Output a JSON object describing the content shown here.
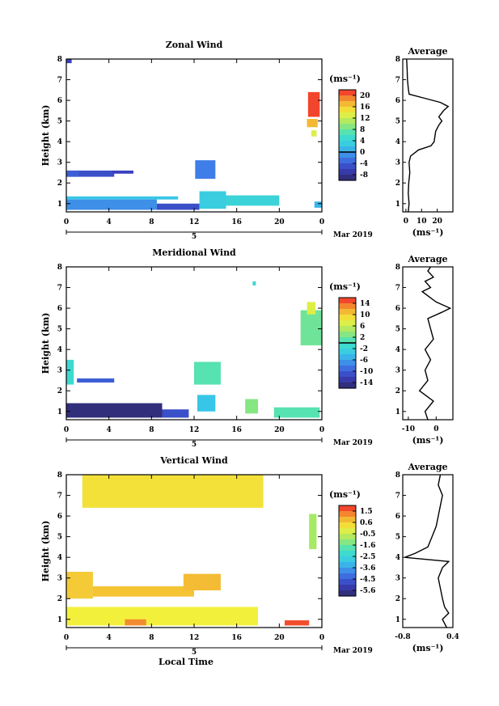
{
  "figure": {
    "date_label": "Mar 2019",
    "xlabel_bottom": "Local Time",
    "avg_title": "Average",
    "unit_label": "(ms⁻¹)"
  },
  "chart_data": [
    {
      "type": "heatmap",
      "title": "Zonal Wind",
      "xlabel": "",
      "ylabel": "Height (km)",
      "xlim": [
        0,
        24
      ],
      "ylim": [
        0.6,
        8
      ],
      "xticks": [
        "0",
        "4",
        "8",
        "12",
        "16",
        "20",
        "0"
      ],
      "yticks": [
        "1",
        "2",
        "3",
        "4",
        "5",
        "6",
        "7",
        "8"
      ],
      "day_label": "5",
      "colorbar": {
        "unit": "(ms⁻¹)",
        "range": [
          -10,
          22
        ],
        "ticks": [
          "20",
          "16",
          "12",
          "8",
          "4",
          "0",
          "-4",
          "-8"
        ],
        "zero_line": 0
      },
      "patches": [
        {
          "x": [
            0,
            0.5
          ],
          "y": [
            7.8,
            8.0
          ],
          "value": -6
        },
        {
          "x": [
            0.1,
            4.5
          ],
          "y": [
            2.3,
            2.6
          ],
          "value": -5
        },
        {
          "x": [
            0,
            1.2
          ],
          "y": [
            2.3,
            2.6
          ],
          "value": -4
        },
        {
          "x": [
            4.3,
            6.3
          ],
          "y": [
            2.45,
            2.6
          ],
          "value": -6
        },
        {
          "x": [
            12.1,
            14.0
          ],
          "y": [
            2.2,
            3.1
          ],
          "value": -2
        },
        {
          "x": [
            0,
            10.5
          ],
          "y": [
            1.2,
            1.35
          ],
          "value": 2
        },
        {
          "x": [
            0,
            8.5
          ],
          "y": [
            0.7,
            1.2
          ],
          "value": -1
        },
        {
          "x": [
            8.5,
            12.5
          ],
          "y": [
            0.7,
            1.0
          ],
          "value": -5
        },
        {
          "x": [
            12.5,
            15.0
          ],
          "y": [
            0.75,
            1.6
          ],
          "value": 3
        },
        {
          "x": [
            15.0,
            20.0
          ],
          "y": [
            0.9,
            1.4
          ],
          "value": 4
        },
        {
          "x": [
            22.7,
            23.8
          ],
          "y": [
            5.2,
            6.4
          ],
          "value": 21
        },
        {
          "x": [
            22.6,
            23.6
          ],
          "y": [
            4.7,
            5.1
          ],
          "value": 17
        },
        {
          "x": [
            23.0,
            23.5
          ],
          "y": [
            4.25,
            4.55
          ],
          "value": 13
        },
        {
          "x": [
            23.3,
            24.0
          ],
          "y": [
            0.8,
            1.1
          ],
          "value": 1
        }
      ],
      "average_profile": {
        "xlabel": "(ms⁻¹)",
        "xlim": [
          -2,
          30
        ],
        "xticks": [
          "0",
          "10",
          "20"
        ],
        "height": [
          0.6,
          1.0,
          1.5,
          2.0,
          2.5,
          3.0,
          3.3,
          3.6,
          3.8,
          4.0,
          4.5,
          4.8,
          5.0,
          5.2,
          5.5,
          5.7,
          5.9,
          6.1,
          6.3,
          6.6,
          7.0,
          7.5,
          8.0
        ],
        "value": [
          1.5,
          2.0,
          1.5,
          1.8,
          2.5,
          2.0,
          3.0,
          8.0,
          16.0,
          18.0,
          19.0,
          21.0,
          23.0,
          21.0,
          24.0,
          27.0,
          22.0,
          12.0,
          2.0,
          1.5,
          1.0,
          0.8,
          0.5
        ]
      }
    },
    {
      "type": "heatmap",
      "title": "Meridional Wind",
      "xlabel": "",
      "ylabel": "Height (km)",
      "xlim": [
        0,
        24
      ],
      "ylim": [
        0.6,
        8
      ],
      "xticks": [
        "0",
        "4",
        "8",
        "12",
        "16",
        "20",
        "0"
      ],
      "yticks": [
        "1",
        "2",
        "3",
        "4",
        "5",
        "6",
        "7",
        "8"
      ],
      "day_label": "5",
      "colorbar": {
        "unit": "(ms⁻¹)",
        "range": [
          -16,
          16
        ],
        "ticks": [
          "14",
          "10",
          "6",
          "2",
          "-2",
          "-6",
          "-10",
          "-14"
        ],
        "zero_line": 0
      },
      "patches": [
        {
          "x": [
            0,
            0.7
          ],
          "y": [
            2.3,
            3.5
          ],
          "value": -1
        },
        {
          "x": [
            1.0,
            4.5
          ],
          "y": [
            2.4,
            2.6
          ],
          "value": -10
        },
        {
          "x": [
            0,
            9.0
          ],
          "y": [
            0.7,
            1.4
          ],
          "value": -15
        },
        {
          "x": [
            9.0,
            11.5
          ],
          "y": [
            0.7,
            1.1
          ],
          "value": -11
        },
        {
          "x": [
            12.0,
            14.5
          ],
          "y": [
            2.3,
            3.4
          ],
          "value": 1
        },
        {
          "x": [
            12.3,
            14.0
          ],
          "y": [
            1.0,
            1.8
          ],
          "value": -4
        },
        {
          "x": [
            16.8,
            18.0
          ],
          "y": [
            0.9,
            1.6
          ],
          "value": 3
        },
        {
          "x": [
            19.5,
            23.8
          ],
          "y": [
            0.7,
            1.2
          ],
          "value": 1
        },
        {
          "x": [
            17.5,
            17.8
          ],
          "y": [
            7.1,
            7.3
          ],
          "value": -1
        },
        {
          "x": [
            22.0,
            24.0
          ],
          "y": [
            4.2,
            5.9
          ],
          "value": 2
        },
        {
          "x": [
            22.6,
            23.4
          ],
          "y": [
            5.7,
            6.3
          ],
          "value": 7
        }
      ],
      "average_profile": {
        "xlabel": "(ms⁻¹)",
        "xlim": [
          -12,
          6
        ],
        "xticks": [
          "-10",
          "0"
        ],
        "height": [
          0.6,
          1.0,
          1.5,
          2.0,
          2.5,
          3.0,
          3.5,
          4.0,
          4.5,
          5.0,
          5.5,
          5.8,
          6.0,
          6.3,
          6.5,
          6.8,
          7.0,
          7.3,
          7.5,
          7.8,
          8.0
        ],
        "value": [
          -3,
          -4,
          -1,
          -6,
          -3,
          -4,
          -2,
          -4,
          -1,
          -2,
          -3,
          2,
          5,
          0,
          -2,
          -5,
          -2,
          -4,
          -1,
          -3,
          -2
        ]
      }
    },
    {
      "type": "heatmap",
      "title": "Vertical Wind",
      "xlabel": "Local Time",
      "ylabel": "Height (km)",
      "xlim": [
        0,
        24
      ],
      "ylim": [
        0.6,
        8
      ],
      "xticks": [
        "0",
        "4",
        "8",
        "12",
        "16",
        "20",
        "0"
      ],
      "yticks": [
        "1",
        "2",
        "3",
        "4",
        "5",
        "6",
        "7",
        "8"
      ],
      "day_label": "5",
      "colorbar": {
        "unit": "(ms⁻¹)",
        "range": [
          -6.0,
          2.0
        ],
        "ticks": [
          "1.5",
          "0.6",
          "-0.5",
          "-1.6",
          "-2.5",
          "-3.6",
          "-4.5",
          "-5.6"
        ],
        "zero_line": null
      },
      "patches": [
        {
          "x": [
            1.5,
            18.5
          ],
          "y": [
            6.4,
            8.0
          ],
          "value": 0.2
        },
        {
          "x": [
            0,
            2.5
          ],
          "y": [
            2.0,
            3.3
          ],
          "value": 0.5
        },
        {
          "x": [
            2.5,
            12.0
          ],
          "y": [
            2.1,
            2.6
          ],
          "value": 0.6
        },
        {
          "x": [
            11.0,
            14.5
          ],
          "y": [
            2.4,
            3.2
          ],
          "value": 0.7
        },
        {
          "x": [
            0,
            18.0
          ],
          "y": [
            0.7,
            1.6
          ],
          "value": 0.0
        },
        {
          "x": [
            5.5,
            7.5
          ],
          "y": [
            0.7,
            1.0
          ],
          "value": 1.2
        },
        {
          "x": [
            20.5,
            22.8
          ],
          "y": [
            0.7,
            0.95
          ],
          "value": 1.7
        },
        {
          "x": [
            22.8,
            23.5
          ],
          "y": [
            4.4,
            6.1
          ],
          "value": -0.9
        }
      ],
      "average_profile": {
        "xlabel": "(ms⁻¹)",
        "xlim": [
          -0.8,
          0.4
        ],
        "xticks": [
          "-0.8",
          "0.4"
        ],
        "height": [
          0.6,
          1.0,
          1.3,
          1.6,
          2.0,
          2.5,
          3.0,
          3.5,
          3.8,
          4.0,
          4.2,
          4.5,
          5.0,
          5.5,
          6.0,
          6.5,
          7.0,
          7.5,
          8.0
        ],
        "value": [
          0.25,
          0.15,
          0.3,
          0.2,
          0.15,
          0.1,
          0.05,
          0.15,
          0.3,
          -0.75,
          -0.5,
          -0.2,
          -0.1,
          0.0,
          0.05,
          0.1,
          0.15,
          0.05,
          0.1
        ]
      }
    }
  ]
}
